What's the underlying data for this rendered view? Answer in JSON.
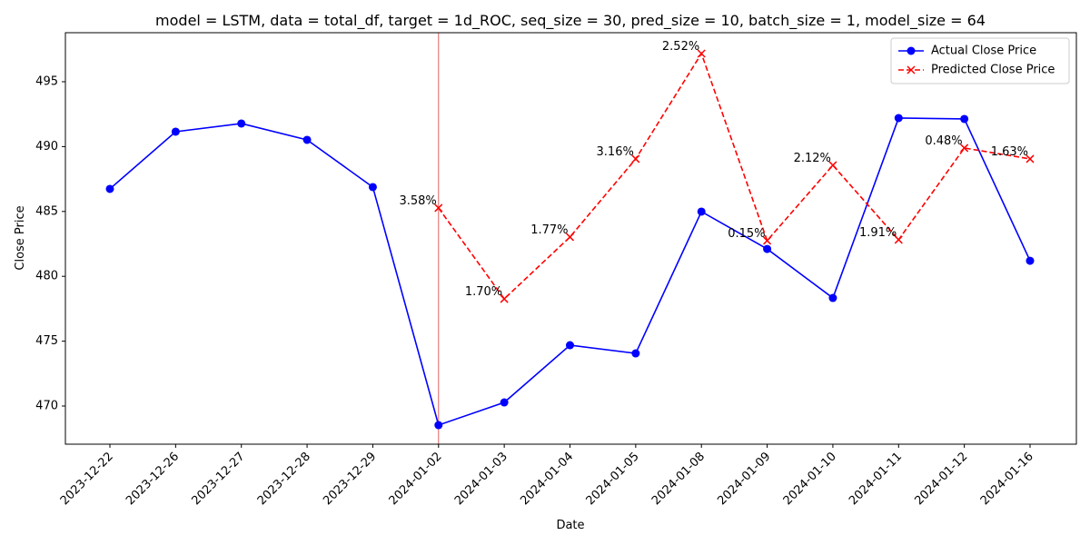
{
  "chart_data": {
    "type": "line",
    "title": "model = LSTM, data = total_df, target = 1d_ROC, seq_size = 30, pred_size = 10, batch_size = 1, model_size = 64",
    "x_label": "Date",
    "y_label": "Close Price",
    "categories": [
      "2023-12-22",
      "2023-12-26",
      "2023-12-27",
      "2023-12-28",
      "2023-12-29",
      "2024-01-02",
      "2024-01-03",
      "2024-01-04",
      "2024-01-05",
      "2024-01-08",
      "2024-01-09",
      "2024-01-10",
      "2024-01-11",
      "2024-01-12",
      "2024-01-16"
    ],
    "series": [
      {
        "name": "Actual Close Price",
        "color": "#0000ff",
        "marker": "o",
        "linestyle": "solid",
        "values": [
          486.74,
          491.15,
          491.78,
          490.52,
          486.88,
          468.53,
          470.28,
          474.69,
          474.06,
          484.99,
          482.11,
          478.33,
          492.2,
          492.13,
          481.2
        ]
      },
      {
        "name": "Predicted Close Price",
        "color": "#ff0000",
        "marker": "x",
        "linestyle": "dashed",
        "values": [
          null,
          null,
          null,
          null,
          null,
          485.27,
          478.26,
          483.03,
          489.05,
          497.17,
          482.75,
          488.56,
          482.82,
          489.89,
          489.05
        ]
      }
    ],
    "annotations": [
      null,
      null,
      null,
      null,
      null,
      "3.58%",
      "1.70%",
      "1.77%",
      "3.16%",
      "2.52%",
      "0.15%",
      "2.12%",
      "1.91%",
      "0.48%",
      "1.63%"
    ],
    "vline": "2024-01-02",
    "vline_color": "#e06060",
    "ylim": [
      467.06,
      498.78
    ],
    "yticks": [
      470,
      475,
      480,
      485,
      490,
      495
    ],
    "grid": false,
    "legend": "upper right"
  }
}
